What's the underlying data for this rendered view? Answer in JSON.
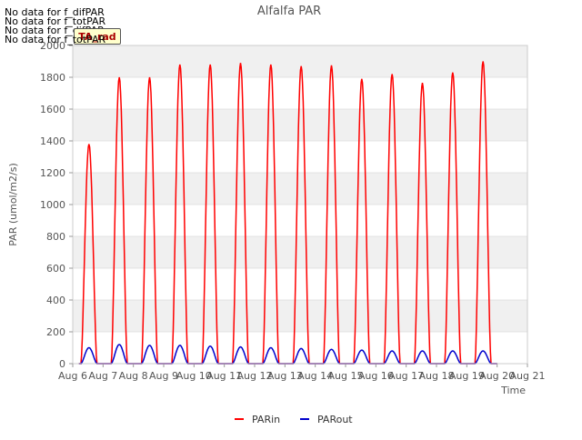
{
  "chart_data": {
    "type": "line",
    "title": "Alfalfa PAR",
    "xlabel": "Time",
    "ylabel": "PAR (umol/m2/s)",
    "ylim": [
      0,
      2000
    ],
    "yticks": [
      0,
      200,
      400,
      600,
      800,
      1000,
      1200,
      1400,
      1600,
      1800,
      2000
    ],
    "xlim": [
      6,
      21
    ],
    "xticks": [
      6,
      7,
      8,
      9,
      10,
      11,
      12,
      13,
      14,
      15,
      16,
      17,
      18,
      19,
      20,
      21
    ],
    "xtick_labels": [
      "Aug 6",
      "Aug 7",
      "Aug 8",
      "Aug 9",
      "Aug 10",
      "Aug 11",
      "Aug 12",
      "Aug 13",
      "Aug 14",
      "Aug 15",
      "Aug 16",
      "Aug 17",
      "Aug 18",
      "Aug 19",
      "Aug 20",
      "Aug 21"
    ],
    "grid": "horizontal-bands",
    "legend_position": "bottom-center",
    "series": [
      {
        "name": "PARin",
        "color": "#ff0000",
        "daily_peaks": [
          {
            "day": 6,
            "peak": 1380
          },
          {
            "day": 7,
            "peak": 1800
          },
          {
            "day": 8,
            "peak": 1800
          },
          {
            "day": 9,
            "peak": 1880
          },
          {
            "day": 10,
            "peak": 1880
          },
          {
            "day": 11,
            "peak": 1890
          },
          {
            "day": 12,
            "peak": 1880
          },
          {
            "day": 13,
            "peak": 1870
          },
          {
            "day": 14,
            "peak": 1875
          },
          {
            "day": 15,
            "peak": 1790
          },
          {
            "day": 16,
            "peak": 1820
          },
          {
            "day": 17,
            "peak": 1765
          },
          {
            "day": 18,
            "peak": 1830
          },
          {
            "day": 19,
            "peak": 1900
          }
        ]
      },
      {
        "name": "PARout",
        "color": "#0000cc",
        "daily_peaks": [
          {
            "day": 6,
            "peak": 100
          },
          {
            "day": 7,
            "peak": 120
          },
          {
            "day": 8,
            "peak": 115
          },
          {
            "day": 9,
            "peak": 115
          },
          {
            "day": 10,
            "peak": 110
          },
          {
            "day": 11,
            "peak": 105
          },
          {
            "day": 12,
            "peak": 100
          },
          {
            "day": 13,
            "peak": 95
          },
          {
            "day": 14,
            "peak": 90
          },
          {
            "day": 15,
            "peak": 85
          },
          {
            "day": 16,
            "peak": 80
          },
          {
            "day": 17,
            "peak": 80
          },
          {
            "day": 18,
            "peak": 80
          },
          {
            "day": 19,
            "peak": 80
          }
        ]
      }
    ]
  },
  "annotations": {
    "no_data_lines": [
      "No data for f_difPAR",
      "No data for f_totPAR",
      "No data for f_difPAR",
      "No data for f_totPAR"
    ],
    "badge_label": "TA_rad"
  },
  "colors": {
    "band": "#f0f0f0",
    "grid": "#dddddd",
    "axis": "#cccccc",
    "text": "#555555"
  }
}
